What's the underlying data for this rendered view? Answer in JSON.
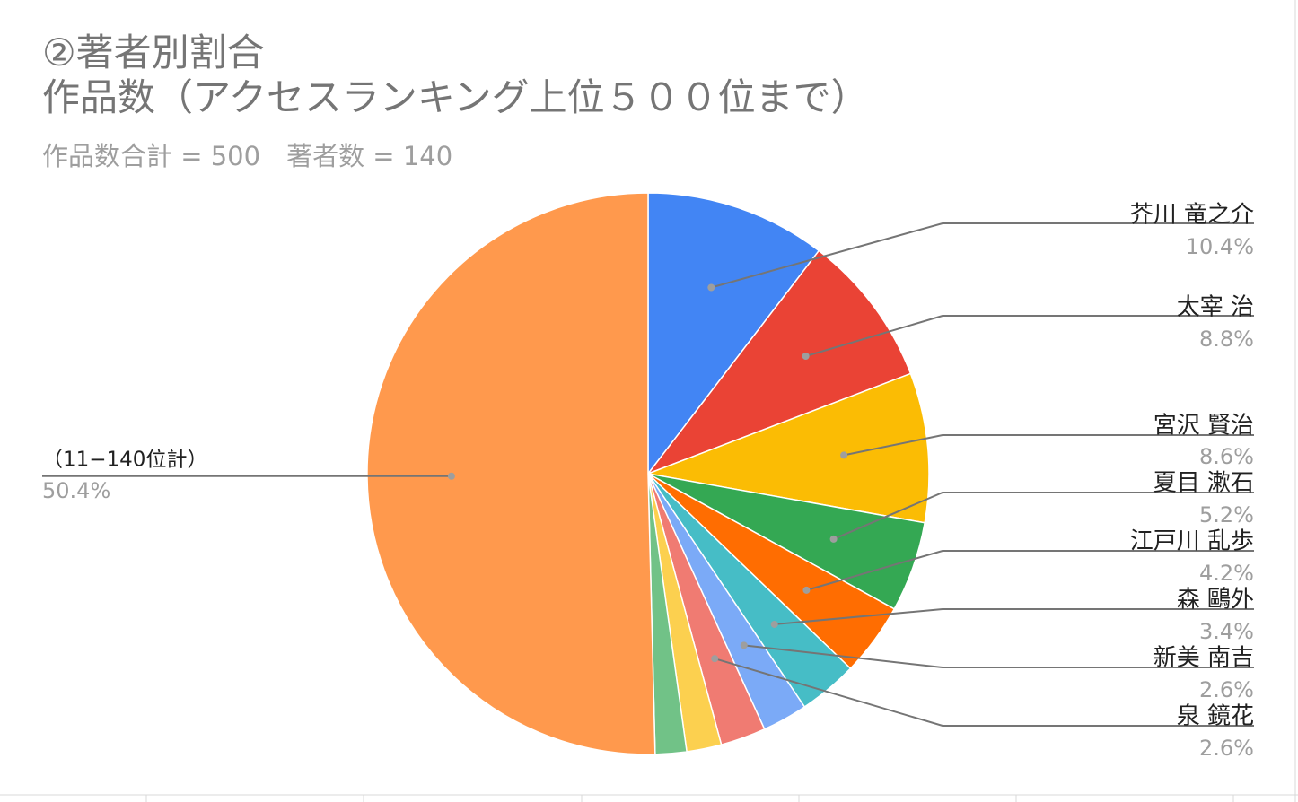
{
  "chart_data": {
    "type": "pie",
    "title": "②著者別割合",
    "title_line2": "作品数（アクセスランキング上位５００位まで）",
    "subtitle": "作品数合計 = 500　著者数 = 140",
    "slices": [
      {
        "label": "芥川 竜之介",
        "value": 10.4,
        "percent_label": "10.4%",
        "color": "#4285f4"
      },
      {
        "label": "太宰 治",
        "value": 8.8,
        "percent_label": "8.8%",
        "color": "#ea4335"
      },
      {
        "label": "宮沢 賢治",
        "value": 8.6,
        "percent_label": "8.6%",
        "color": "#fbbc04"
      },
      {
        "label": "夏目 漱石",
        "value": 5.2,
        "percent_label": "5.2%",
        "color": "#34a853"
      },
      {
        "label": "江戸川 乱歩",
        "value": 4.2,
        "percent_label": "4.2%",
        "color": "#ff6d01"
      },
      {
        "label": "森 鷗外",
        "value": 3.4,
        "percent_label": "3.4%",
        "color": "#46bdc6"
      },
      {
        "label": "新美 南吉",
        "value": 2.6,
        "percent_label": "2.6%",
        "color": "#7baaf7"
      },
      {
        "label": "泉 鏡花",
        "value": 2.6,
        "percent_label": "2.6%",
        "color": "#f07b72"
      },
      {
        "label": "",
        "value": 2.0,
        "percent_label": "",
        "color": "#fcd04f"
      },
      {
        "label": "",
        "value": 1.8,
        "percent_label": "",
        "color": "#71c287"
      },
      {
        "label": "（11−140位計）",
        "value": 50.4,
        "percent_label": "50.4%",
        "color": "#ff994d"
      }
    ],
    "legend": "none"
  }
}
